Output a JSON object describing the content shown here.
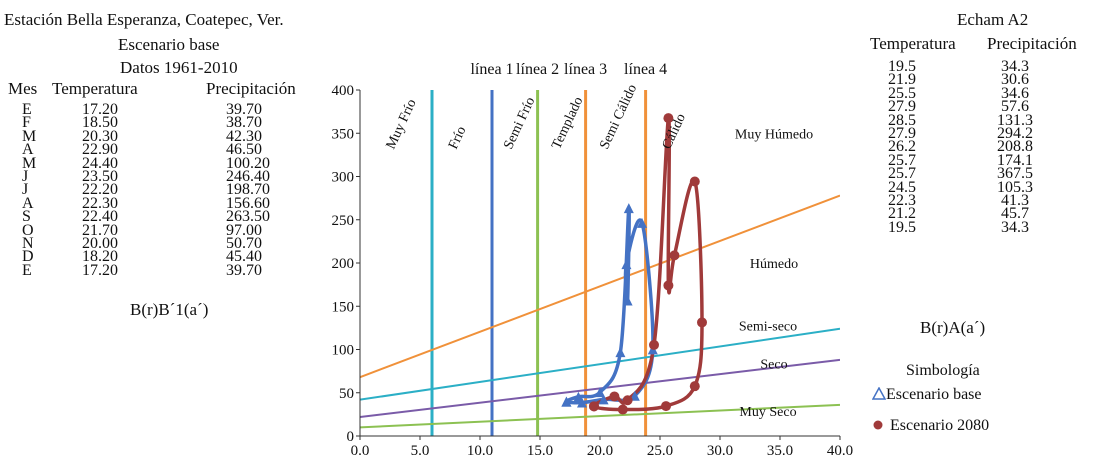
{
  "left_panel": {
    "station_title": "Estación Bella Esperanza, Coatepec, Ver.",
    "scenario_label": "Escenario base",
    "period_label": "Datos 1961-2010",
    "headers": {
      "month": "Mes",
      "temperature": "Temperatura",
      "precipitation": "Precipitación"
    },
    "rows": [
      {
        "month": "E",
        "temperature": "17.20",
        "precipitation": "39.70"
      },
      {
        "month": "F",
        "temperature": "18.50",
        "precipitation": "38.70"
      },
      {
        "month": "M",
        "temperature": "20.30",
        "precipitation": "42.30"
      },
      {
        "month": "A",
        "temperature": "22.90",
        "precipitation": "46.50"
      },
      {
        "month": "M",
        "temperature": "24.40",
        "precipitation": "100.20"
      },
      {
        "month": "J",
        "temperature": "23.50",
        "precipitation": "246.40"
      },
      {
        "month": "J",
        "temperature": "22.20",
        "precipitation": "198.70"
      },
      {
        "month": "A",
        "temperature": "22.30",
        "precipitation": "156.60"
      },
      {
        "month": "S",
        "temperature": "22.40",
        "precipitation": "263.50"
      },
      {
        "month": "O",
        "temperature": "21.70",
        "precipitation": "97.00"
      },
      {
        "month": "N",
        "temperature": "20.00",
        "precipitation": "50.70"
      },
      {
        "month": "D",
        "temperature": "18.20",
        "precipitation": "45.40"
      },
      {
        "month": "E",
        "temperature": "17.20",
        "precipitation": "39.70"
      }
    ],
    "classification": "B(r)B´1(a´)"
  },
  "right_panel": {
    "title": "Echam A2",
    "headers": {
      "temperature": "Temperatura",
      "precipitation": "Precipitación"
    },
    "rows": [
      {
        "temperature": "19.5",
        "precipitation": "34.3"
      },
      {
        "temperature": "21.9",
        "precipitation": "30.6"
      },
      {
        "temperature": "25.5",
        "precipitation": "34.6"
      },
      {
        "temperature": "27.9",
        "precipitation": "57.6"
      },
      {
        "temperature": "28.5",
        "precipitation": "131.3"
      },
      {
        "temperature": "27.9",
        "precipitation": "294.2"
      },
      {
        "temperature": "26.2",
        "precipitation": "208.8"
      },
      {
        "temperature": "25.7",
        "precipitation": "174.1"
      },
      {
        "temperature": "25.7",
        "precipitation": "367.5"
      },
      {
        "temperature": "24.5",
        "precipitation": "105.3"
      },
      {
        "temperature": "22.3",
        "precipitation": "41.3"
      },
      {
        "temperature": "21.2",
        "precipitation": "45.7"
      },
      {
        "temperature": "19.5",
        "precipitation": "34.3"
      }
    ],
    "classification": "B(r)A(a´)",
    "legend_title": "Simbología",
    "legend_items": [
      {
        "label": "Escenario base",
        "color": "#4472C4"
      },
      {
        "label": "Escenario 2080",
        "color": "#A03A3A"
      }
    ]
  },
  "chart_data": {
    "type": "scatter",
    "xlim": [
      0,
      40
    ],
    "ylim": [
      0,
      400
    ],
    "x_ticks": [
      "0.0",
      "5.0",
      "10.0",
      "15.0",
      "20.0",
      "25.0",
      "30.0",
      "35.0",
      "40.0"
    ],
    "y_ticks": [
      "0",
      "50",
      "100",
      "150",
      "200",
      "250",
      "300",
      "350",
      "400"
    ],
    "vertical_lines": [
      {
        "x": 6.0,
        "label": "",
        "color": "#2BAFC6"
      },
      {
        "x": 11.0,
        "label": "línea 1",
        "color": "#4472C4"
      },
      {
        "x": 14.8,
        "label": "línea 2",
        "color": "#8CC152"
      },
      {
        "x": 18.8,
        "label": "línea 3",
        "color": "#F0913A"
      },
      {
        "x": 23.8,
        "label": "línea 4",
        "color": "#F0913A"
      }
    ],
    "thermal_zones": [
      {
        "label": "Muy Frío",
        "x": 2.8
      },
      {
        "label": "Frío",
        "x": 8.0
      },
      {
        "label": "Semi Frío",
        "x": 12.6
      },
      {
        "label": "Templado",
        "x": 16.6
      },
      {
        "label": "Semi Cálido",
        "x": 20.6
      },
      {
        "label": "Cálido",
        "x": 25.8
      }
    ],
    "humidity_lines": [
      {
        "label": "Muy Húmedo",
        "color": "",
        "y0": 0,
        "y1": 0,
        "label_x": 34.5,
        "label_y": 350
      },
      {
        "label": "Húmedo",
        "color": "#F0913A",
        "y0": 68,
        "y1": 278,
        "label_x": 34.5,
        "label_y": 200
      },
      {
        "label": "Semi-seco",
        "color": "#2BAFC6",
        "y0": 42,
        "y1": 124,
        "label_x": 34.0,
        "label_y": 128
      },
      {
        "label": "Seco",
        "color": "#7A5BA8",
        "y0": 22,
        "y1": 88,
        "label_x": 34.5,
        "label_y": 84
      },
      {
        "label": "Muy Seco",
        "color": "#8CC152",
        "y0": 10,
        "y1": 36,
        "label_x": 34.0,
        "label_y": 29
      }
    ],
    "series": [
      {
        "name": "Escenario base",
        "color": "#4472C4",
        "marker": "triangle",
        "x": [
          17.2,
          18.5,
          20.3,
          22.9,
          24.4,
          23.5,
          22.2,
          22.3,
          22.4,
          21.7,
          20.0,
          18.2,
          17.2
        ],
        "y": [
          39.7,
          38.7,
          42.3,
          46.5,
          100.2,
          246.4,
          198.7,
          156.6,
          263.5,
          97.0,
          50.7,
          45.4,
          39.7
        ]
      },
      {
        "name": "Escenario 2080",
        "color": "#A03A3A",
        "marker": "circle",
        "x": [
          19.5,
          21.9,
          25.5,
          27.9,
          28.5,
          27.9,
          26.2,
          25.7,
          25.7,
          24.5,
          22.3,
          21.2,
          19.5
        ],
        "y": [
          34.3,
          30.6,
          34.6,
          57.6,
          131.3,
          294.2,
          208.8,
          174.1,
          367.5,
          105.3,
          41.3,
          45.7,
          34.3
        ]
      }
    ]
  }
}
